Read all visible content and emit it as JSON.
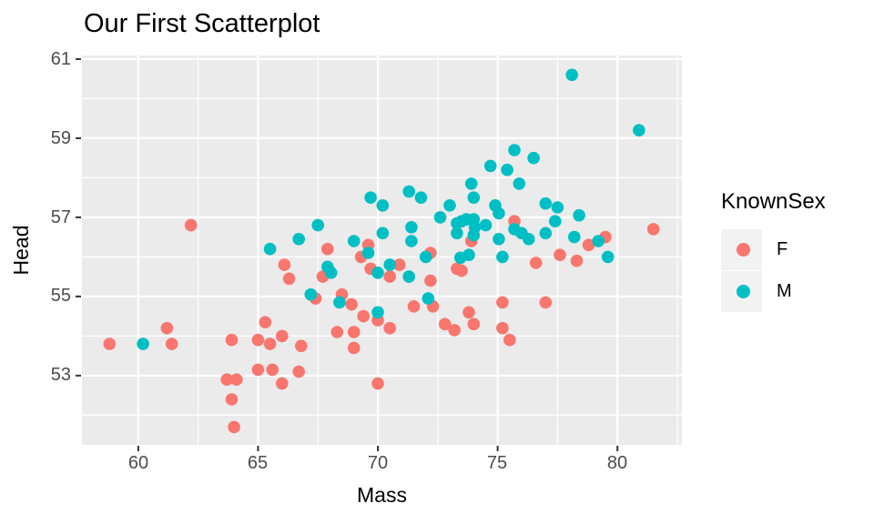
{
  "title": "Our First Scatterplot",
  "chart_data": {
    "type": "scatter",
    "title": "Our First Scatterplot",
    "xlabel": "Mass",
    "ylabel": "Head",
    "x_ticks": [
      60,
      65,
      70,
      75,
      80
    ],
    "y_ticks": [
      53,
      55,
      57,
      59,
      61
    ],
    "x_minor": [
      62.5,
      67.5,
      72.5,
      77.5,
      82.5
    ],
    "y_minor": [
      52,
      54,
      56,
      58,
      60
    ],
    "xlim": [
      57.65,
      82.69
    ],
    "ylim": [
      51.25,
      61.09
    ],
    "grid": "white major+minor gridlines on gray panel",
    "panel_color": "#EBEBEB",
    "gridline_color": "#FFFFFF",
    "tick_mark_color": "#333333",
    "tick_label_color": "#4D4D4D",
    "point_radius": 6.8,
    "legend": {
      "title": "KnownSex",
      "position": "right",
      "key_fill": "#F2F2F2",
      "entries": [
        {
          "label": "F",
          "color": "#F8766D"
        },
        {
          "label": "M",
          "color": "#00BFC4"
        }
      ]
    },
    "series": [
      {
        "name": "F",
        "color": "#F8766D",
        "points": [
          [
            58.8,
            53.8
          ],
          [
            61.2,
            54.2
          ],
          [
            61.4,
            53.8
          ],
          [
            62.2,
            56.8
          ],
          [
            63.9,
            53.9
          ],
          [
            63.7,
            52.9
          ],
          [
            64.1,
            52.9
          ],
          [
            63.9,
            52.4
          ],
          [
            64.0,
            51.7
          ],
          [
            65.0,
            53.9
          ],
          [
            65.3,
            54.35
          ],
          [
            65.5,
            53.8
          ],
          [
            65.0,
            53.15
          ],
          [
            65.6,
            53.15
          ],
          [
            66.0,
            54.0
          ],
          [
            66.7,
            53.1
          ],
          [
            66.0,
            52.8
          ],
          [
            66.8,
            53.75
          ],
          [
            66.1,
            55.8
          ],
          [
            66.3,
            55.45
          ],
          [
            67.4,
            54.95
          ],
          [
            67.7,
            55.5
          ],
          [
            67.9,
            56.2
          ],
          [
            68.3,
            54.1
          ],
          [
            69.0,
            54.1
          ],
          [
            69.0,
            53.7
          ],
          [
            68.5,
            55.05
          ],
          [
            68.9,
            54.8
          ],
          [
            69.4,
            54.5
          ],
          [
            70.0,
            54.4
          ],
          [
            70.5,
            54.2
          ],
          [
            70.0,
            52.8
          ],
          [
            69.3,
            56.0
          ],
          [
            69.6,
            56.3
          ],
          [
            69.7,
            55.7
          ],
          [
            70.9,
            55.8
          ],
          [
            70.5,
            55.5
          ],
          [
            72.2,
            56.1
          ],
          [
            72.2,
            55.4
          ],
          [
            71.5,
            54.75
          ],
          [
            72.3,
            54.75
          ],
          [
            72.8,
            54.3
          ],
          [
            73.2,
            54.15
          ],
          [
            73.3,
            55.7
          ],
          [
            73.5,
            55.65
          ],
          [
            73.9,
            56.4
          ],
          [
            73.8,
            54.6
          ],
          [
            74.0,
            54.3
          ],
          [
            75.2,
            54.85
          ],
          [
            75.2,
            54.2
          ],
          [
            75.5,
            53.9
          ],
          [
            75.7,
            56.9
          ],
          [
            76.6,
            55.85
          ],
          [
            77.0,
            54.85
          ],
          [
            77.6,
            56.05
          ],
          [
            78.3,
            55.9
          ],
          [
            78.8,
            56.3
          ],
          [
            79.5,
            56.5
          ],
          [
            81.5,
            56.7
          ]
        ]
      },
      {
        "name": "M",
        "color": "#00BFC4",
        "points": [
          [
            60.2,
            53.8
          ],
          [
            65.5,
            56.2
          ],
          [
            66.7,
            56.45
          ],
          [
            67.5,
            56.8
          ],
          [
            67.2,
            55.05
          ],
          [
            67.9,
            55.75
          ],
          [
            68.05,
            55.6
          ],
          [
            68.4,
            54.85
          ],
          [
            70.0,
            54.6
          ],
          [
            69.0,
            56.4
          ],
          [
            69.7,
            57.5
          ],
          [
            70.2,
            57.3
          ],
          [
            70.2,
            56.6
          ],
          [
            69.6,
            56.1
          ],
          [
            70.0,
            55.6
          ],
          [
            70.5,
            55.8
          ],
          [
            71.3,
            55.5
          ],
          [
            71.3,
            57.65
          ],
          [
            71.8,
            57.5
          ],
          [
            71.4,
            56.75
          ],
          [
            71.4,
            56.4
          ],
          [
            72.0,
            56.0
          ],
          [
            72.1,
            54.95
          ],
          [
            72.6,
            57.0
          ],
          [
            73.0,
            57.3
          ],
          [
            73.9,
            57.85
          ],
          [
            74.0,
            57.5
          ],
          [
            73.3,
            56.85
          ],
          [
            73.5,
            56.9
          ],
          [
            73.7,
            56.95
          ],
          [
            74.0,
            56.95
          ],
          [
            74.05,
            56.75
          ],
          [
            74.5,
            56.8
          ],
          [
            73.3,
            56.6
          ],
          [
            74.0,
            56.55
          ],
          [
            73.8,
            56.05
          ],
          [
            73.45,
            55.98
          ],
          [
            74.7,
            58.3
          ],
          [
            75.4,
            58.2
          ],
          [
            75.7,
            58.7
          ],
          [
            76.5,
            58.5
          ],
          [
            75.9,
            57.85
          ],
          [
            74.9,
            57.3
          ],
          [
            75.05,
            57.1
          ],
          [
            75.05,
            56.45
          ],
          [
            75.2,
            56.0
          ],
          [
            75.7,
            56.7
          ],
          [
            76.0,
            56.6
          ],
          [
            76.3,
            56.45
          ],
          [
            77.0,
            57.35
          ],
          [
            77.0,
            56.6
          ],
          [
            77.5,
            57.25
          ],
          [
            77.4,
            56.9
          ],
          [
            78.4,
            57.05
          ],
          [
            78.2,
            56.5
          ],
          [
            79.2,
            56.4
          ],
          [
            79.6,
            56.0
          ],
          [
            78.1,
            60.6
          ],
          [
            80.9,
            59.2
          ]
        ]
      }
    ]
  }
}
